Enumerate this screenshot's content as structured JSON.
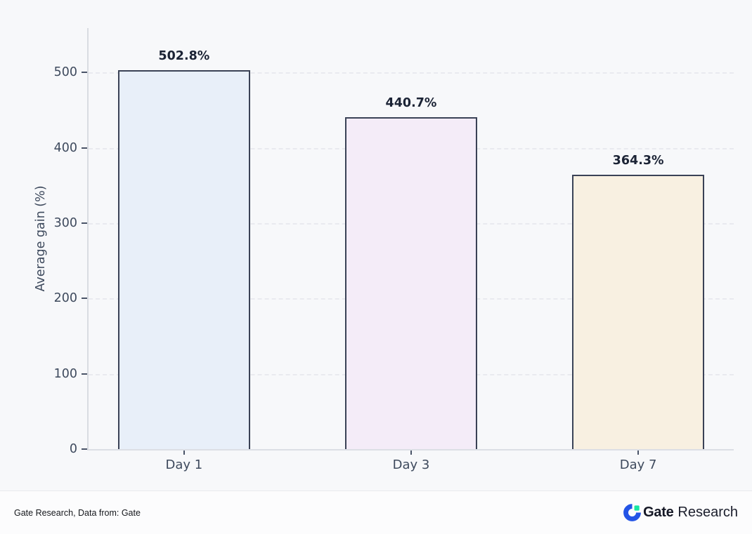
{
  "chart_data": {
    "type": "bar",
    "title": "",
    "categories": [
      "Day 1",
      "Day 3",
      "Day 7"
    ],
    "values": [
      502.8,
      440.7,
      364.3
    ],
    "value_labels": [
      "502.8%",
      "440.7%",
      "364.3%"
    ],
    "bar_colors": [
      "#e8eff9",
      "#f4ecf8",
      "#f8f0e1"
    ],
    "bar_border_color": "#3a4256",
    "xlabel": "",
    "ylabel": "Average gain (%)",
    "yticks": [
      0,
      100,
      200,
      300,
      400,
      500
    ],
    "ylim": [
      0,
      558.8
    ],
    "grid": "horizontal-dashed",
    "legend": "none",
    "background_color": "#f7f8fa"
  },
  "footer": {
    "source_note": "Gate Research, Data from: Gate",
    "logo": {
      "brand": "Gate",
      "suffix": "Research",
      "icon": "gate-circle-logo",
      "icon_blue": "#2354e6",
      "icon_green": "#17e6a2"
    }
  }
}
